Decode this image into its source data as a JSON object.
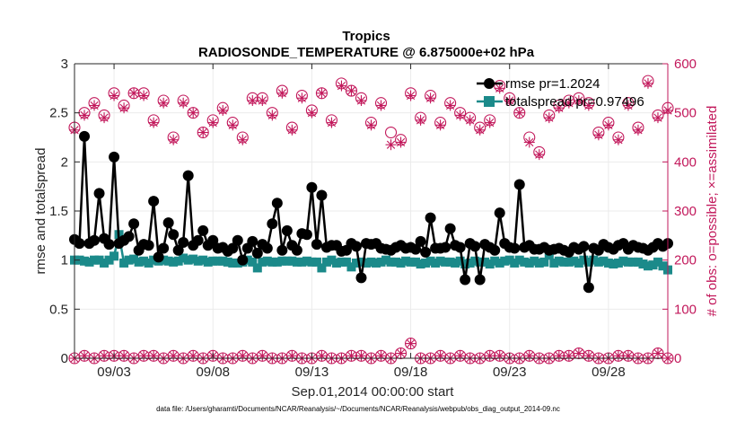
{
  "chart_data": {
    "type": "line",
    "title": "Tropics",
    "subtitle": "RADIOSONDE_TEMPERATURE @ 6.875000e+02 hPa",
    "xlabel": "Sep.01,2014 00:00:00 start",
    "ylabel_left": "rmse and totalspread",
    "ylabel_right": "# of obs: o=possible; ×=assimilated",
    "footnote": "data file: /Users/gharamti/Documents/NCAR/Reanalysis/~/Documents/NCAR/Reanalysis/webpub/obs_diag_output_2014-09.nc",
    "xlim": [
      1.0,
      31.0
    ],
    "ylim_left": [
      0,
      3
    ],
    "ylim_right": [
      0,
      600
    ],
    "x_ticks": [
      3,
      8,
      13,
      18,
      23,
      28
    ],
    "x_tick_labels": [
      "09/03",
      "09/08",
      "09/13",
      "09/18",
      "09/23",
      "09/28"
    ],
    "y_ticks_left": [
      "0",
      "0.5",
      "1",
      "1.5",
      "2",
      "2.5",
      "3"
    ],
    "y_ticks_right": [
      "0",
      "100",
      "200",
      "300",
      "400",
      "500",
      "600"
    ],
    "legend": [
      "rmse pr=1.2024",
      "totalspread pr=0.97496"
    ],
    "colors": {
      "rmse": "#000000",
      "totalspread": "#1b8a8a",
      "obs": "#c2185b",
      "grid": "#ebebeb",
      "axis": "#262626"
    },
    "x": [
      1.0,
      1.25,
      1.5,
      1.75,
      2.0,
      2.25,
      2.5,
      2.75,
      3.0,
      3.25,
      3.5,
      3.75,
      4.0,
      4.25,
      4.5,
      4.75,
      5.0,
      5.25,
      5.5,
      5.75,
      6.0,
      6.25,
      6.5,
      6.75,
      7.0,
      7.25,
      7.5,
      7.75,
      8.0,
      8.25,
      8.5,
      8.75,
      9.0,
      9.25,
      9.5,
      9.75,
      10.0,
      10.25,
      10.5,
      10.75,
      11.0,
      11.25,
      11.5,
      11.75,
      12.0,
      12.25,
      12.5,
      12.75,
      13.0,
      13.25,
      13.5,
      13.75,
      14.0,
      14.25,
      14.5,
      14.75,
      15.0,
      15.25,
      15.5,
      15.75,
      16.0,
      16.25,
      16.5,
      16.75,
      17.0,
      17.25,
      17.5,
      17.75,
      18.0,
      18.25,
      18.5,
      18.75,
      19.0,
      19.25,
      19.5,
      19.75,
      20.0,
      20.25,
      20.5,
      20.75,
      21.0,
      21.25,
      21.5,
      21.75,
      22.0,
      22.25,
      22.5,
      22.75,
      23.0,
      23.25,
      23.5,
      23.75,
      24.0,
      24.25,
      24.5,
      24.75,
      25.0,
      25.25,
      25.5,
      25.75,
      26.0,
      26.25,
      26.5,
      26.75,
      27.0,
      27.25,
      27.5,
      27.75,
      28.0,
      28.25,
      28.5,
      28.75,
      29.0,
      29.25,
      29.5,
      29.75,
      30.0,
      30.25,
      30.5,
      30.75,
      31.0
    ],
    "series": [
      {
        "name": "rmse",
        "values": [
          1.21,
          1.17,
          2.26,
          1.17,
          1.2,
          1.68,
          1.22,
          1.16,
          2.05,
          1.17,
          1.2,
          1.24,
          1.37,
          1.1,
          1.16,
          1.15,
          1.6,
          1.03,
          1.12,
          1.38,
          1.26,
          1.1,
          1.18,
          1.86,
          1.15,
          1.2,
          1.3,
          1.15,
          1.2,
          1.12,
          1.13,
          1.09,
          1.12,
          1.2,
          1.0,
          1.12,
          1.19,
          1.07,
          1.16,
          1.12,
          1.37,
          1.58,
          1.1,
          1.3,
          1.15,
          1.1,
          1.27,
          1.26,
          1.74,
          1.16,
          1.66,
          1.13,
          1.15,
          1.15,
          1.09,
          1.1,
          1.17,
          1.14,
          0.82,
          1.17,
          1.16,
          1.17,
          1.12,
          1.11,
          1.1,
          1.13,
          1.15,
          1.12,
          1.13,
          1.11,
          1.19,
          1.08,
          1.43,
          1.12,
          1.12,
          1.13,
          1.32,
          1.15,
          1.13,
          0.8,
          1.17,
          1.14,
          0.8,
          1.16,
          1.13,
          1.1,
          1.48,
          1.17,
          1.13,
          1.12,
          1.77,
          1.13,
          1.15,
          1.11,
          1.11,
          1.13,
          1.1,
          1.11,
          1.12,
          1.1,
          1.08,
          1.13,
          1.11,
          1.14,
          0.72,
          1.12,
          1.1,
          1.16,
          1.13,
          1.11,
          1.15,
          1.17,
          1.11,
          1.15,
          1.13,
          1.12,
          1.1,
          1.13,
          1.17,
          1.14,
          1.17
        ]
      },
      {
        "name": "totalspread",
        "values": [
          1.0,
          1.0,
          0.99,
          0.98,
          1.0,
          1.0,
          0.97,
          1.0,
          1.04,
          1.26,
          0.97,
          1.0,
          1.01,
          0.98,
          0.99,
          0.97,
          1.0,
          0.99,
          1.0,
          0.99,
          0.98,
          0.99,
          1.02,
          1.0,
          1.01,
          0.99,
          1.0,
          0.98,
          0.99,
          0.99,
          0.99,
          0.98,
          0.97,
          0.97,
          0.98,
          1.0,
          0.98,
          0.92,
          0.98,
          0.99,
          0.98,
          0.98,
          0.99,
          0.99,
          0.99,
          0.98,
          0.98,
          0.99,
          0.98,
          0.98,
          0.92,
          0.98,
          1.0,
          0.97,
          0.98,
          0.98,
          0.93,
          0.97,
          0.98,
          0.97,
          0.98,
          0.97,
          0.98,
          1.0,
          0.98,
          0.98,
          0.97,
          0.99,
          0.98,
          0.98,
          0.96,
          0.97,
          0.99,
          0.97,
          0.99,
          0.98,
          0.98,
          0.97,
          0.99,
          0.96,
          0.97,
          0.99,
          0.98,
          0.98,
          0.96,
          0.99,
          0.97,
          0.99,
          1.0,
          0.97,
          1.0,
          0.98,
          0.97,
          0.99,
          0.97,
          0.98,
          1.05,
          0.97,
          0.99,
          0.98,
          0.98,
          0.99,
          0.97,
          1.0,
          0.98,
          1.0,
          0.98,
          0.99,
          0.97,
          0.96,
          0.97,
          0.99,
          0.98,
          0.98,
          0.98,
          0.96,
          0.94,
          0.95,
          0.98,
          0.94,
          0.9
        ]
      }
    ],
    "obs_days": [
      1.0,
      1.5,
      2.0,
      2.5,
      3.0,
      3.5,
      4.0,
      4.5,
      5.0,
      5.5,
      6.0,
      6.5,
      7.0,
      7.5,
      8.0,
      8.5,
      9.0,
      9.5,
      10.0,
      10.5,
      11.0,
      11.5,
      12.0,
      12.5,
      13.0,
      13.5,
      14.0,
      14.5,
      15.0,
      15.5,
      16.0,
      16.5,
      17.0,
      17.5,
      18.0,
      18.5,
      19.0,
      19.5,
      20.0,
      20.5,
      21.0,
      21.5,
      22.0,
      22.5,
      23.0,
      23.5,
      24.0,
      24.5,
      25.0,
      25.5,
      26.0,
      26.5,
      27.0,
      27.5,
      28.0,
      28.5,
      29.0,
      29.5,
      30.0,
      30.5,
      31.0
    ],
    "possible_main": [
      470,
      500,
      520,
      495,
      540,
      515,
      540,
      540,
      485,
      525,
      450,
      525,
      500,
      460,
      485,
      510,
      480,
      450,
      530,
      530,
      500,
      545,
      470,
      535,
      505,
      540,
      485,
      560,
      545,
      530,
      480,
      520,
      460,
      445,
      540,
      490,
      535,
      480,
      520,
      500,
      490,
      470,
      485,
      555,
      530,
      500,
      450,
      420,
      495,
      515,
      525,
      530,
      520,
      460,
      480,
      450,
      520,
      470,
      565,
      495,
      510
    ],
    "assimilated_main": [
      465,
      495,
      515,
      490,
      535,
      510,
      540,
      535,
      480,
      520,
      445,
      520,
      500,
      460,
      480,
      505,
      475,
      445,
      525,
      525,
      495,
      540,
      465,
      530,
      500,
      540,
      480,
      555,
      545,
      525,
      475,
      515,
      435,
      440,
      535,
      485,
      530,
      475,
      515,
      495,
      485,
      465,
      480,
      550,
      525,
      500,
      440,
      415,
      490,
      510,
      520,
      525,
      515,
      455,
      475,
      445,
      515,
      465,
      560,
      490,
      505
    ],
    "possible_bottom": [
      0,
      5,
      0,
      5,
      5,
      5,
      0,
      5,
      5,
      0,
      5,
      0,
      5,
      0,
      5,
      0,
      0,
      5,
      0,
      5,
      0,
      0,
      5,
      0,
      0,
      5,
      0,
      0,
      5,
      5,
      0,
      5,
      0,
      10,
      30,
      0,
      0,
      5,
      0,
      5,
      0,
      0,
      5,
      5,
      0,
      0,
      5,
      0,
      0,
      5,
      5,
      10,
      5,
      0,
      0,
      5,
      5,
      0,
      0,
      10,
      0
    ],
    "assimilated_bottom": [
      0,
      5,
      0,
      5,
      5,
      5,
      0,
      5,
      5,
      0,
      5,
      0,
      5,
      0,
      5,
      0,
      0,
      5,
      0,
      5,
      0,
      0,
      5,
      0,
      0,
      5,
      0,
      0,
      5,
      5,
      0,
      5,
      0,
      10,
      30,
      0,
      0,
      5,
      0,
      5,
      0,
      0,
      5,
      5,
      0,
      0,
      5,
      0,
      0,
      5,
      5,
      10,
      5,
      0,
      0,
      5,
      5,
      0,
      0,
      10,
      0
    ]
  }
}
